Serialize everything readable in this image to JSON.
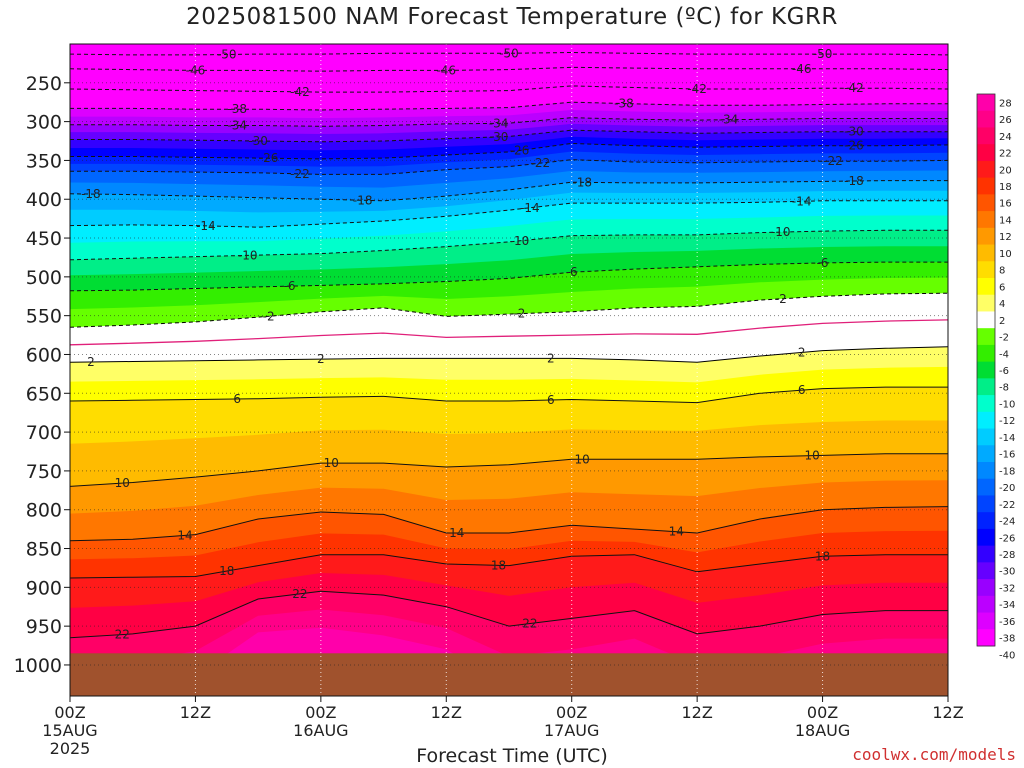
{
  "chart_data": {
    "type": "heatmap",
    "title": "2025081500 NAM Forecast Temperature (ºC) for KGRR",
    "xlabel": "Forecast Time (UTC)",
    "ylabel": "",
    "credit": "coolwx.com/models",
    "x_axis": {
      "range_hours": [
        0,
        84
      ],
      "ticks": [
        {
          "hour": 0,
          "lines": [
            "00Z",
            "15AUG",
            "2025"
          ]
        },
        {
          "hour": 12,
          "lines": [
            "12Z"
          ]
        },
        {
          "hour": 24,
          "lines": [
            "00Z",
            "16AUG"
          ]
        },
        {
          "hour": 36,
          "lines": [
            "12Z"
          ]
        },
        {
          "hour": 48,
          "lines": [
            "00Z",
            "17AUG"
          ]
        },
        {
          "hour": 60,
          "lines": [
            "12Z"
          ]
        },
        {
          "hour": 72,
          "lines": [
            "00Z",
            "18AUG"
          ]
        },
        {
          "hour": 84,
          "lines": [
            "12Z"
          ]
        }
      ]
    },
    "y_axis": {
      "units": "hPa",
      "range": [
        1040,
        200
      ],
      "ticks": [
        250,
        300,
        350,
        400,
        450,
        500,
        550,
        600,
        650,
        700,
        750,
        800,
        850,
        900,
        950,
        1000
      ],
      "ground_level": 985
    },
    "colorbar": {
      "levels": [
        28,
        26,
        24,
        22,
        20,
        18,
        16,
        14,
        12,
        10,
        8,
        6,
        4,
        2,
        -2,
        -4,
        -6,
        -8,
        -10,
        -12,
        -14,
        -16,
        -18,
        -20,
        -22,
        -24,
        -26,
        -28,
        -30,
        -32,
        -34,
        -36,
        -38,
        -40
      ],
      "colors": [
        "#ff00aa",
        "#ff0088",
        "#ff0066",
        "#ff0044",
        "#ff1a1a",
        "#ff3300",
        "#ff5500",
        "#ff7700",
        "#ff9900",
        "#ffbb00",
        "#ffdd00",
        "#ffff00",
        "#ffff66",
        "#ffffff",
        "#66ff00",
        "#33ee00",
        "#00dd33",
        "#00ee88",
        "#00ffcc",
        "#00eeff",
        "#00ccff",
        "#00aaff",
        "#0088ff",
        "#0066ff",
        "#0044ff",
        "#0022ff",
        "#0000ff",
        "#3300ff",
        "#6600ff",
        "#9900ff",
        "#bb00ff",
        "#dd00ff",
        "#ff00ff"
      ]
    },
    "time_hours": [
      0,
      6,
      12,
      18,
      24,
      30,
      36,
      42,
      48,
      54,
      60,
      66,
      72,
      78,
      84
    ],
    "isotherm_pressure_hPa": [
      {
        "t": -50,
        "p": [
          213,
          214,
          214,
          213,
          213,
          212,
          212,
          212,
          211,
          212,
          213,
          213,
          213,
          213,
          214
        ]
      },
      {
        "t": -46,
        "p": [
          232,
          233,
          234,
          234,
          235,
          234,
          234,
          233,
          230,
          231,
          232,
          232,
          232,
          232,
          233
        ]
      },
      {
        "t": -42,
        "p": [
          258,
          259,
          260,
          261,
          262,
          262,
          261,
          260,
          254,
          256,
          258,
          258,
          257,
          257,
          258
        ]
      },
      {
        "t": -38,
        "p": [
          283,
          283,
          284,
          284,
          285,
          284,
          283,
          282,
          275,
          277,
          279,
          279,
          278,
          277,
          277
        ]
      },
      {
        "t": -34,
        "p": [
          304,
          304,
          305,
          305,
          306,
          305,
          303,
          302,
          295,
          297,
          298,
          297,
          296,
          296,
          296
        ]
      },
      {
        "t": -30,
        "p": [
          323,
          323,
          324,
          325,
          326,
          325,
          322,
          319,
          311,
          313,
          315,
          314,
          313,
          313,
          313
        ]
      },
      {
        "t": -26,
        "p": [
          345,
          345,
          346,
          347,
          348,
          347,
          343,
          339,
          328,
          331,
          333,
          332,
          331,
          331,
          330
        ]
      },
      {
        "t": -22,
        "p": [
          364,
          364,
          365,
          366,
          368,
          368,
          362,
          358,
          349,
          352,
          353,
          352,
          351,
          351,
          350
        ]
      },
      {
        "t": -18,
        "p": [
          393,
          394,
          396,
          398,
          400,
          402,
          396,
          388,
          378,
          379,
          379,
          378,
          377,
          376,
          376
        ]
      },
      {
        "t": -14,
        "p": [
          434,
          433,
          434,
          436,
          432,
          428,
          422,
          414,
          405,
          405,
          405,
          404,
          402,
          402,
          402
        ]
      },
      {
        "t": -10,
        "p": [
          478,
          476,
          474,
          472,
          470,
          466,
          461,
          455,
          447,
          446,
          446,
          443,
          441,
          440,
          440
        ]
      },
      {
        "t": -6,
        "p": [
          518,
          517,
          515,
          513,
          511,
          509,
          506,
          502,
          494,
          490,
          487,
          484,
          482,
          481,
          481
        ]
      },
      {
        "t": -2,
        "p": [
          565,
          562,
          558,
          552,
          545,
          540,
          551,
          548,
          545,
          540,
          538,
          530,
          525,
          522,
          521
        ]
      },
      {
        "t": 2,
        "p": [
          610,
          609,
          608,
          607,
          606,
          605,
          605,
          605,
          605,
          607,
          610,
          602,
          595,
          592,
          590
        ]
      },
      {
        "t": 6,
        "p": [
          660,
          659,
          658,
          657,
          655,
          654,
          660,
          660,
          658,
          660,
          662,
          650,
          644,
          642,
          642
        ]
      },
      {
        "t": 10,
        "p": [
          770,
          765,
          758,
          750,
          740,
          740,
          745,
          742,
          735,
          735,
          735,
          732,
          730,
          728,
          728
        ]
      },
      {
        "t": 14,
        "p": [
          840,
          838,
          832,
          812,
          803,
          806,
          830,
          830,
          820,
          825,
          830,
          812,
          800,
          797,
          796
        ]
      },
      {
        "t": 18,
        "p": [
          888,
          887,
          886,
          872,
          858,
          858,
          870,
          872,
          860,
          858,
          880,
          870,
          860,
          858,
          858
        ]
      },
      {
        "t": 22,
        "p": [
          965,
          960,
          950,
          915,
          905,
          910,
          925,
          950,
          940,
          930,
          960,
          950,
          935,
          930,
          930
        ]
      }
    ],
    "contour_labels": [
      {
        "t": -50,
        "hours": [
          15,
          42,
          72
        ]
      },
      {
        "t": -46,
        "hours": [
          12,
          36,
          70
        ]
      },
      {
        "t": -42,
        "hours": [
          22,
          60,
          75
        ]
      },
      {
        "t": -38,
        "hours": [
          16,
          53
        ]
      },
      {
        "t": -34,
        "hours": [
          16,
          41,
          63
        ]
      },
      {
        "t": -30,
        "hours": [
          18,
          41,
          75
        ]
      },
      {
        "t": -26,
        "hours": [
          19,
          43,
          75
        ]
      },
      {
        "t": -22,
        "hours": [
          22,
          45,
          73
        ]
      },
      {
        "t": -18,
        "hours": [
          2,
          28,
          49,
          75
        ]
      },
      {
        "t": -14,
        "hours": [
          13,
          44,
          70
        ]
      },
      {
        "t": -10,
        "hours": [
          17,
          43,
          68
        ]
      },
      {
        "t": -6,
        "hours": [
          21,
          48,
          72
        ]
      },
      {
        "t": -2,
        "hours": [
          19,
          43,
          68
        ]
      },
      {
        "t": 2,
        "hours": [
          2,
          24,
          46,
          70
        ]
      },
      {
        "t": 6,
        "hours": [
          16,
          46,
          70
        ]
      },
      {
        "t": 10,
        "hours": [
          5,
          25,
          49,
          71
        ]
      },
      {
        "t": 14,
        "hours": [
          11,
          37,
          58
        ]
      },
      {
        "t": 18,
        "hours": [
          15,
          41,
          72
        ]
      },
      {
        "t": 22,
        "hours": [
          5,
          22,
          44
        ]
      }
    ]
  }
}
